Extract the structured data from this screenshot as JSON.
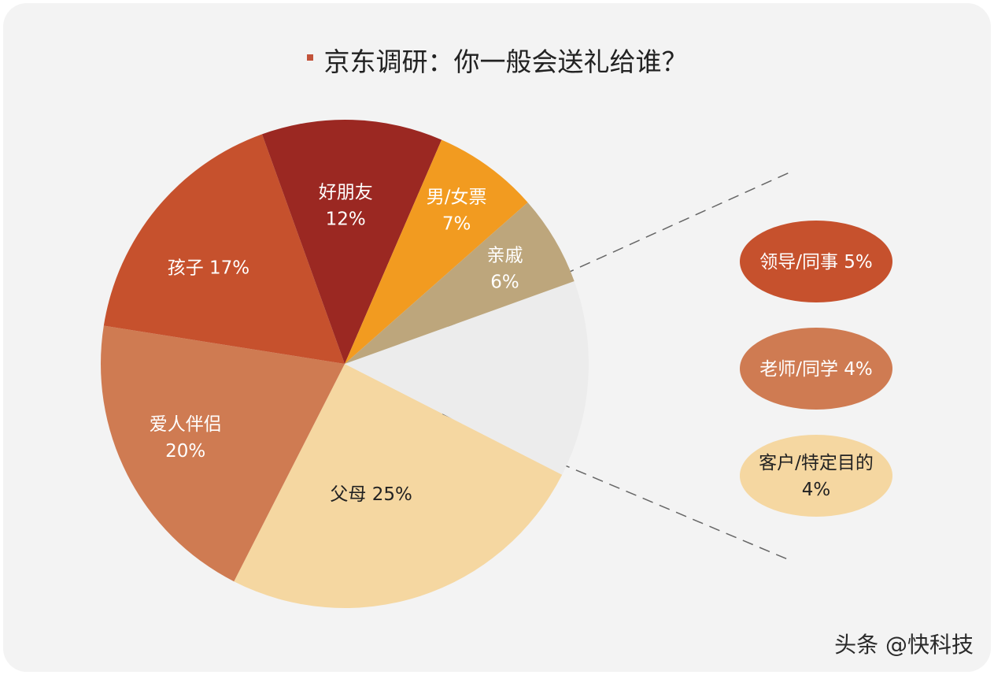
{
  "watermark": "头条 @快科技",
  "chart_data": {
    "type": "pie",
    "title": "京东调研：你一般会送礼给谁？",
    "slices": [
      {
        "name": "父母",
        "value": 25,
        "label_lines": [
          "父母 25%"
        ],
        "color": "#f5d7a1",
        "text_color": "#222222"
      },
      {
        "name": "爱人伴侣",
        "value": 20,
        "label_lines": [
          "爱人伴侣",
          "20%"
        ],
        "color": "#cf7b52",
        "text_color": "#ffffff"
      },
      {
        "name": "孩子",
        "value": 17,
        "label_lines": [
          "孩子 17%"
        ],
        "color": "#c6512d",
        "text_color": "#ffffff"
      },
      {
        "name": "好朋友",
        "value": 12,
        "label_lines": [
          "好朋友",
          "12%"
        ],
        "color": "#9b2822",
        "text_color": "#ffffff"
      },
      {
        "name": "男/女票",
        "value": 7,
        "label_lines": [
          "男/女票",
          "7%"
        ],
        "color": "#f29b20",
        "text_color": "#ffffff"
      },
      {
        "name": "亲戚",
        "value": 6,
        "label_lines": [
          "亲戚",
          "6%"
        ],
        "color": "#bda67c",
        "text_color": "#ffffff"
      },
      {
        "name": "其他",
        "value": 13,
        "label_lines": [],
        "color": "#ececec",
        "text_color": "#222222"
      }
    ],
    "breakdown": [
      {
        "name": "领导/同事",
        "value": 5,
        "label_lines": [
          "领导/同事 5%"
        ],
        "color": "#c6512d",
        "text_color": "#ffffff"
      },
      {
        "name": "老师/同学",
        "value": 4,
        "label_lines": [
          "老师/同学 4%"
        ],
        "color": "#cf7b52",
        "text_color": "#ffffff"
      },
      {
        "name": "客户/特定目的",
        "value": 4,
        "label_lines": [
          "客户/特定目的",
          "4%"
        ],
        "color": "#f5d7a1",
        "text_color": "#222222"
      }
    ]
  }
}
